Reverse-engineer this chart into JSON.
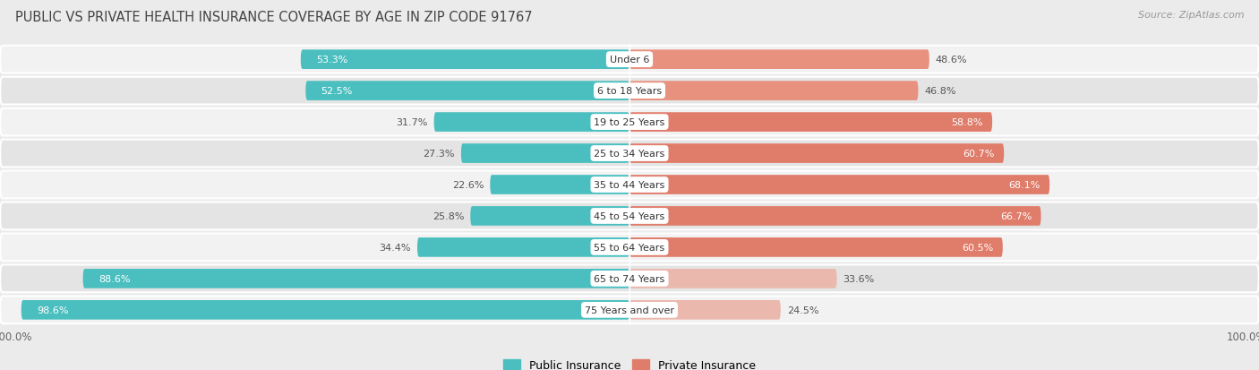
{
  "title": "PUBLIC VS PRIVATE HEALTH INSURANCE COVERAGE BY AGE IN ZIP CODE 91767",
  "source": "Source: ZipAtlas.com",
  "categories": [
    "Under 6",
    "6 to 18 Years",
    "19 to 25 Years",
    "25 to 34 Years",
    "35 to 44 Years",
    "45 to 54 Years",
    "55 to 64 Years",
    "65 to 74 Years",
    "75 Years and over"
  ],
  "public_values": [
    53.3,
    52.5,
    31.7,
    27.3,
    22.6,
    25.8,
    34.4,
    88.6,
    98.6
  ],
  "private_values": [
    48.6,
    46.8,
    58.8,
    60.7,
    68.1,
    66.7,
    60.5,
    33.6,
    24.5
  ],
  "public_color": "#4bbfc0",
  "private_color_strong": "#e07c6a",
  "private_color_medium": "#e8917f",
  "private_color_light": "#ebb8ae",
  "background_color": "#ebebeb",
  "row_bg_even": "#f2f2f2",
  "row_bg_odd": "#e4e4e4",
  "label_color_dark": "#555555",
  "label_color_white": "#ffffff",
  "bar_height": 0.62,
  "legend_public": "Public Insurance",
  "legend_private": "Private Insurance",
  "private_threshold_strong": 55,
  "private_threshold_medium": 40
}
